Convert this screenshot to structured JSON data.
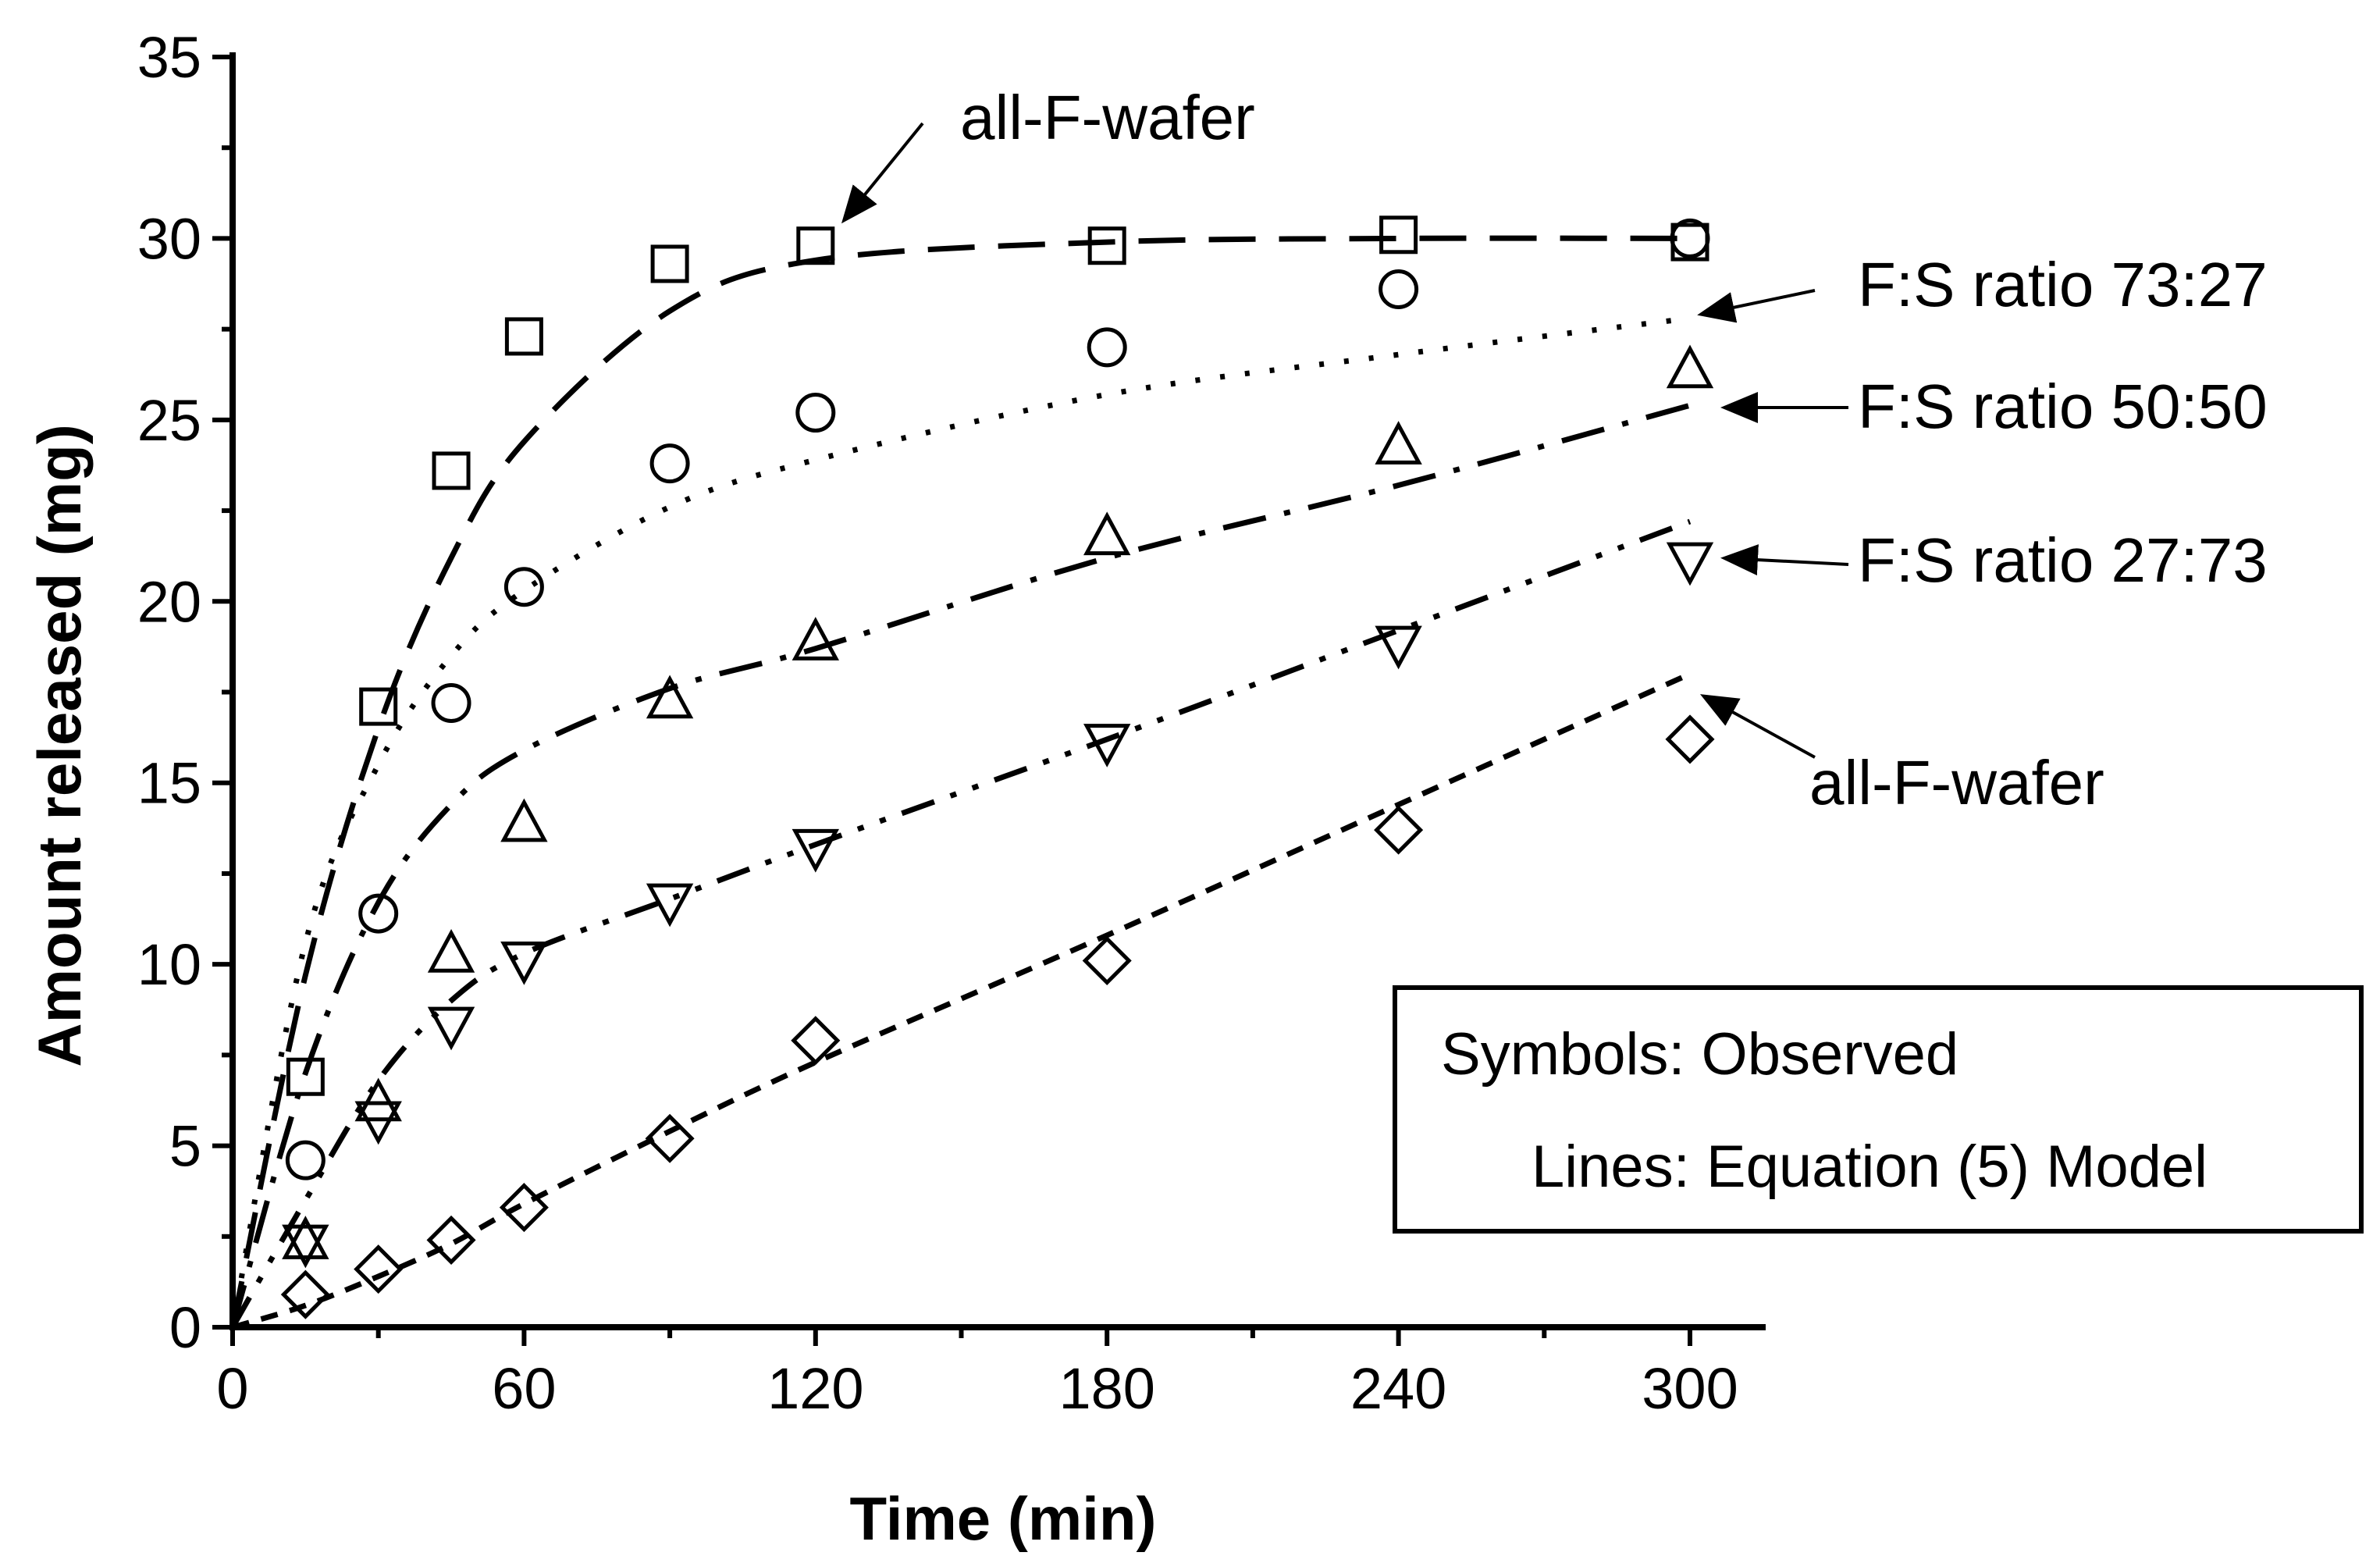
{
  "chart_data": {
    "type": "scatter",
    "xlabel": "Time (min)",
    "ylabel": "Amount released (mg)",
    "xlim": [
      0,
      300
    ],
    "ylim": [
      0,
      35
    ],
    "xticks": [
      0,
      60,
      120,
      180,
      240,
      300
    ],
    "yticks": [
      0,
      5,
      10,
      15,
      20,
      25,
      30,
      35
    ],
    "grid": false,
    "legend_box": {
      "line1": "Symbols: Observed",
      "line2": "Lines: Equation (5) Model",
      "placement": "bottom-right"
    },
    "series": [
      {
        "marker": "square",
        "line_style": "dash",
        "annotation": "all-F-wafer",
        "x": [
          15,
          30,
          45,
          60,
          90,
          120,
          180,
          240,
          300
        ],
        "observed": [
          6.9,
          17.1,
          23.6,
          27.3,
          29.3,
          29.8,
          29.8,
          30.1,
          29.9
        ],
        "model": [
          [
            0,
            0
          ],
          [
            15,
            9.7
          ],
          [
            30,
            16.5
          ],
          [
            45,
            21.2
          ],
          [
            60,
            24.4
          ],
          [
            90,
            28.0
          ],
          [
            120,
            29.4
          ],
          [
            180,
            29.9
          ],
          [
            240,
            30.0
          ],
          [
            300,
            30.0
          ]
        ]
      },
      {
        "marker": "circle",
        "line_style": "dot",
        "annotation": "F:S ratio 73:27",
        "x": [
          15,
          30,
          45,
          60,
          90,
          120,
          180,
          240,
          300
        ],
        "observed": [
          4.6,
          11.4,
          17.2,
          20.4,
          23.8,
          25.2,
          27.0,
          28.6,
          30.0
        ],
        "model": [
          [
            0,
            0
          ],
          [
            15,
            10.6
          ],
          [
            30,
            15.5
          ],
          [
            45,
            18.5
          ],
          [
            60,
            20.3
          ],
          [
            90,
            22.6
          ],
          [
            120,
            23.9
          ],
          [
            180,
            25.7
          ],
          [
            240,
            26.8
          ],
          [
            300,
            27.8
          ]
        ]
      },
      {
        "marker": "triangle-up",
        "line_style": "dash-dot",
        "annotation": "F:S ratio 50:50",
        "x": [
          15,
          30,
          45,
          60,
          90,
          120,
          180,
          240,
          300
        ],
        "observed": [
          2.4,
          6.2,
          10.3,
          13.9,
          17.3,
          18.9,
          21.8,
          24.3,
          26.4
        ],
        "model": [
          [
            0,
            0
          ],
          [
            15,
            7.0
          ],
          [
            30,
            11.7
          ],
          [
            45,
            14.4
          ],
          [
            60,
            15.9
          ],
          [
            90,
            17.6
          ],
          [
            120,
            18.7
          ],
          [
            180,
            21.2
          ],
          [
            240,
            23.2
          ],
          [
            300,
            25.4
          ]
        ]
      },
      {
        "marker": "triangle-down",
        "line_style": "dash-dot-dot",
        "annotation": "F:S ratio 27:73",
        "x": [
          15,
          30,
          45,
          60,
          90,
          120,
          180,
          240,
          300
        ],
        "observed": [
          2.3,
          5.7,
          8.3,
          10.1,
          11.7,
          13.2,
          16.1,
          18.8,
          21.1
        ],
        "model": [
          [
            0,
            0
          ],
          [
            15,
            3.5
          ],
          [
            30,
            6.8
          ],
          [
            45,
            9.0
          ],
          [
            60,
            10.3
          ],
          [
            90,
            11.8
          ],
          [
            120,
            13.3
          ],
          [
            180,
            16.2
          ],
          [
            240,
            19.2
          ],
          [
            300,
            22.2
          ]
        ]
      },
      {
        "marker": "diamond",
        "line_style": "short-dash",
        "annotation": "all-F-wafer",
        "x": [
          15,
          30,
          45,
          60,
          90,
          120,
          180,
          240,
          300
        ],
        "observed": [
          0.9,
          1.6,
          2.4,
          3.3,
          5.2,
          7.9,
          10.1,
          13.7,
          16.2
        ],
        "model": [
          [
            0,
            0
          ],
          [
            15,
            0.6
          ],
          [
            30,
            1.4
          ],
          [
            45,
            2.3
          ],
          [
            60,
            3.4
          ],
          [
            90,
            5.4
          ],
          [
            120,
            7.3
          ],
          [
            180,
            10.8
          ],
          [
            240,
            14.4
          ],
          [
            300,
            18.0
          ]
        ]
      }
    ]
  }
}
